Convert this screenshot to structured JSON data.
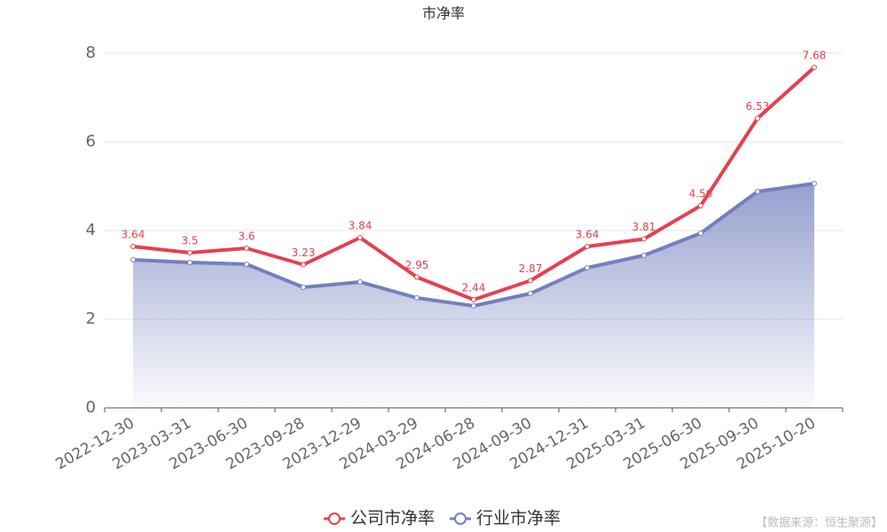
{
  "chart_data": {
    "type": "line",
    "title": "市净率",
    "categories": [
      "2022-12-30",
      "2023-03-31",
      "2023-06-30",
      "2023-09-28",
      "2023-12-29",
      "2024-03-29",
      "2024-06-28",
      "2024-09-30",
      "2024-12-31",
      "2025-03-31",
      "2025-06-30",
      "2025-09-30",
      "2025-10-20"
    ],
    "series": [
      {
        "name": "公司市净率",
        "color": "#e5404f",
        "values": [
          3.64,
          3.5,
          3.6,
          3.23,
          3.84,
          2.95,
          2.44,
          2.87,
          3.64,
          3.81,
          4.56,
          6.53,
          7.68
        ],
        "labels": true
      },
      {
        "name": "行业市净率",
        "color": "#7380be",
        "values": [
          3.34,
          3.28,
          3.24,
          2.72,
          2.84,
          2.48,
          2.3,
          2.58,
          3.16,
          3.44,
          3.94,
          4.88,
          5.06
        ],
        "area": true
      }
    ],
    "ylim": [
      0,
      8
    ],
    "yticks": [
      0,
      2,
      4,
      6,
      8
    ],
    "grid": true,
    "source": "【数据来源：恒生聚源】"
  }
}
